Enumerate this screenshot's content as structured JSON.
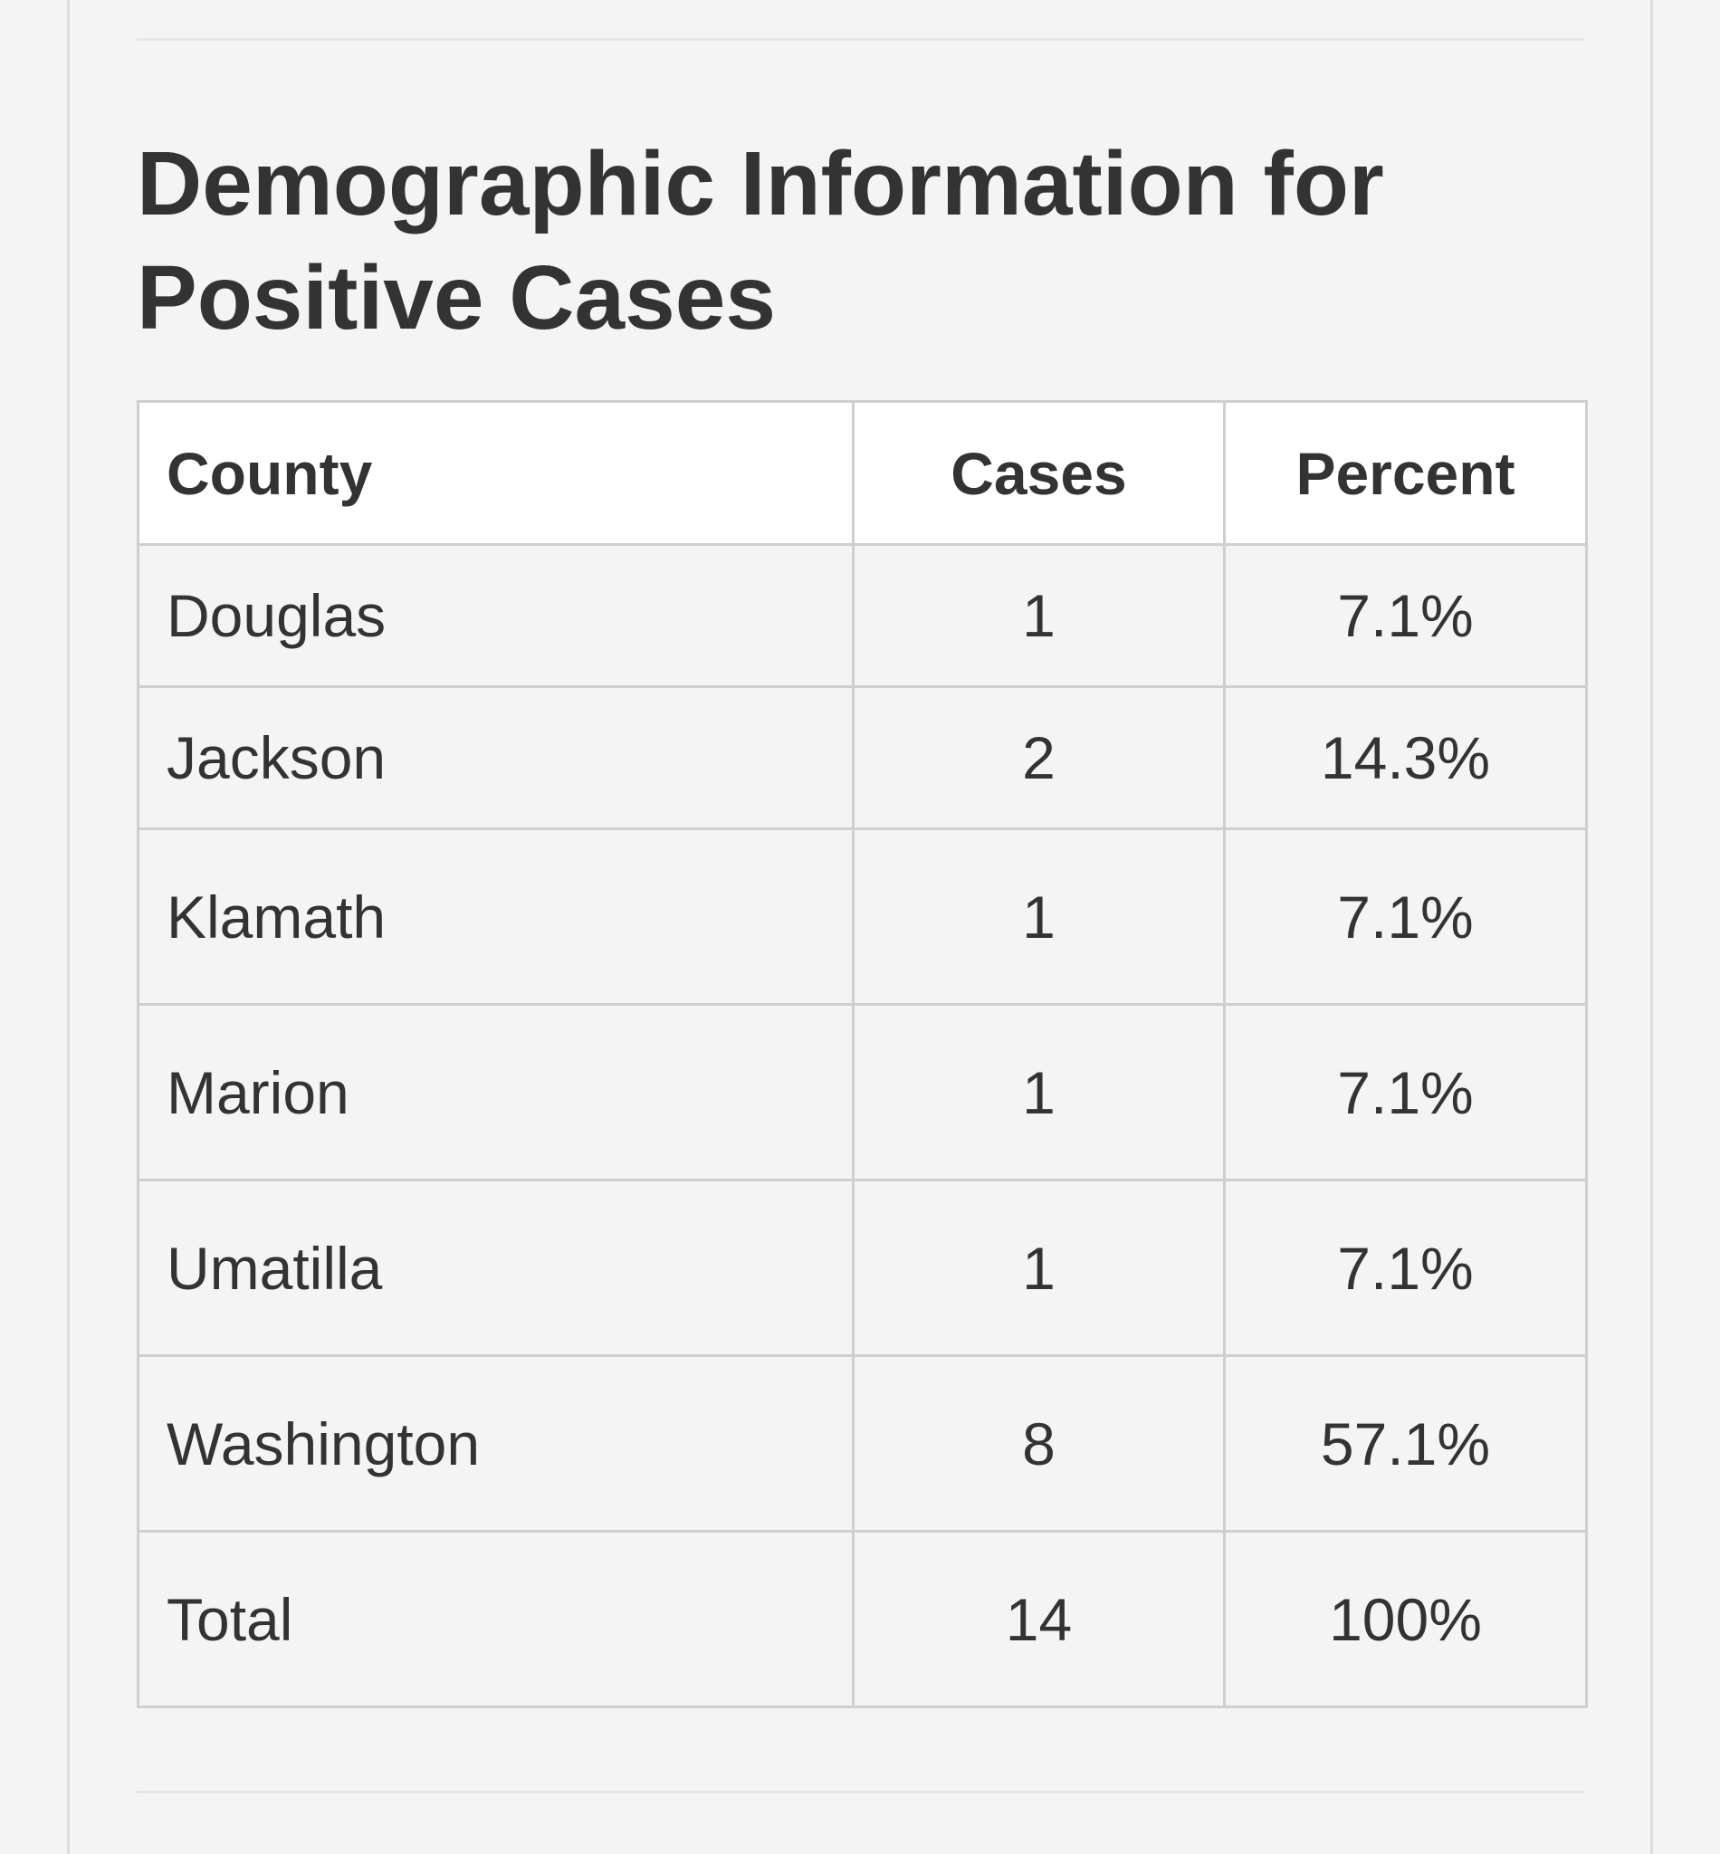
{
  "heading": "Demographic Information for Positive Cases",
  "table": {
    "headers": {
      "county": "County",
      "cases": "Cases",
      "percent": "Percent"
    },
    "rows": [
      {
        "county": "Douglas",
        "cases": "1",
        "percent": "7.1%"
      },
      {
        "county": "Jackson",
        "cases": "2",
        "percent": "14.3%"
      },
      {
        "county": "Klamath",
        "cases": "1",
        "percent": "7.1%"
      },
      {
        "county": "Marion",
        "cases": "1",
        "percent": "7.1%"
      },
      {
        "county": "Umatilla",
        "cases": "1",
        "percent": "7.1%"
      },
      {
        "county": "Washington",
        "cases": "8",
        "percent": "57.1%"
      },
      {
        "county": "Total",
        "cases": "14",
        "percent": "100%"
      }
    ]
  }
}
